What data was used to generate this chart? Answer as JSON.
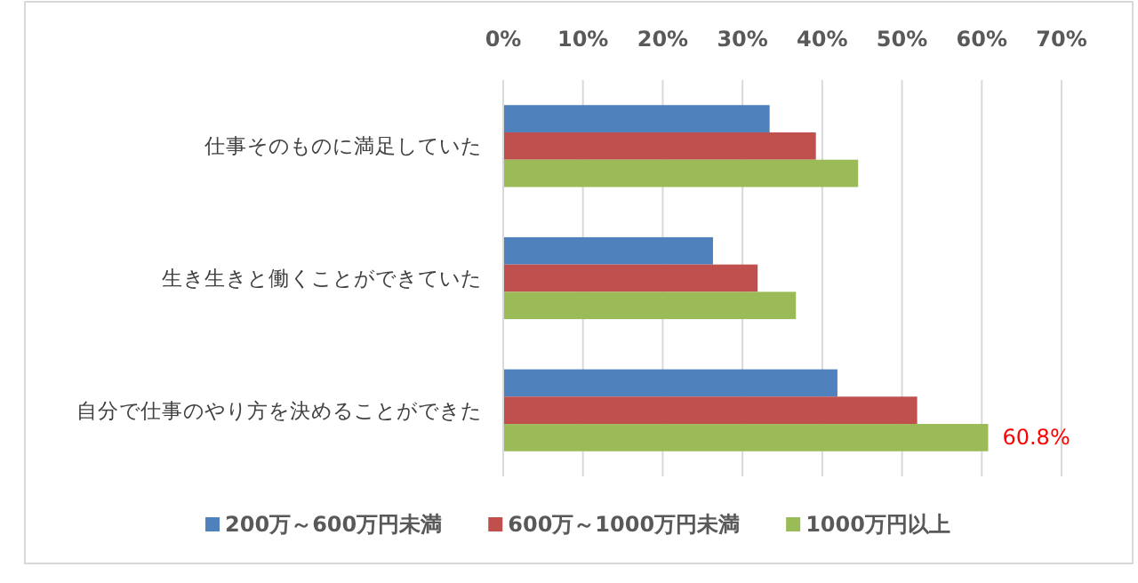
{
  "chart_data": {
    "type": "bar",
    "orientation": "horizontal",
    "categories": [
      "仕事そのものに満足していた",
      "生き生きと働くことができていた",
      "自分で仕事のやり方を決めることができた"
    ],
    "series": [
      {
        "name": "200万～600万円未満",
        "color": "#4f81bd",
        "values": [
          33.4,
          26.3,
          41.9
        ]
      },
      {
        "name": "600万～1000万円未満",
        "color": "#c0504d",
        "values": [
          39.2,
          31.9,
          51.9
        ]
      },
      {
        "name": "1000万円以上",
        "color": "#9bbb59",
        "values": [
          44.5,
          36.7,
          60.8
        ],
        "value_labels": [
          null,
          null,
          "60.8%"
        ]
      }
    ],
    "xlim": [
      0,
      70
    ],
    "xticks": [
      {
        "value": 0,
        "label": "0%"
      },
      {
        "value": 10,
        "label": "10%"
      },
      {
        "value": 20,
        "label": "20%"
      },
      {
        "value": 30,
        "label": "30%"
      },
      {
        "value": 40,
        "label": "40%"
      },
      {
        "value": 50,
        "label": "50%"
      },
      {
        "value": 60,
        "label": "60%"
      },
      {
        "value": 70,
        "label": "70%"
      }
    ],
    "grid": "x",
    "legend": "bottom"
  }
}
